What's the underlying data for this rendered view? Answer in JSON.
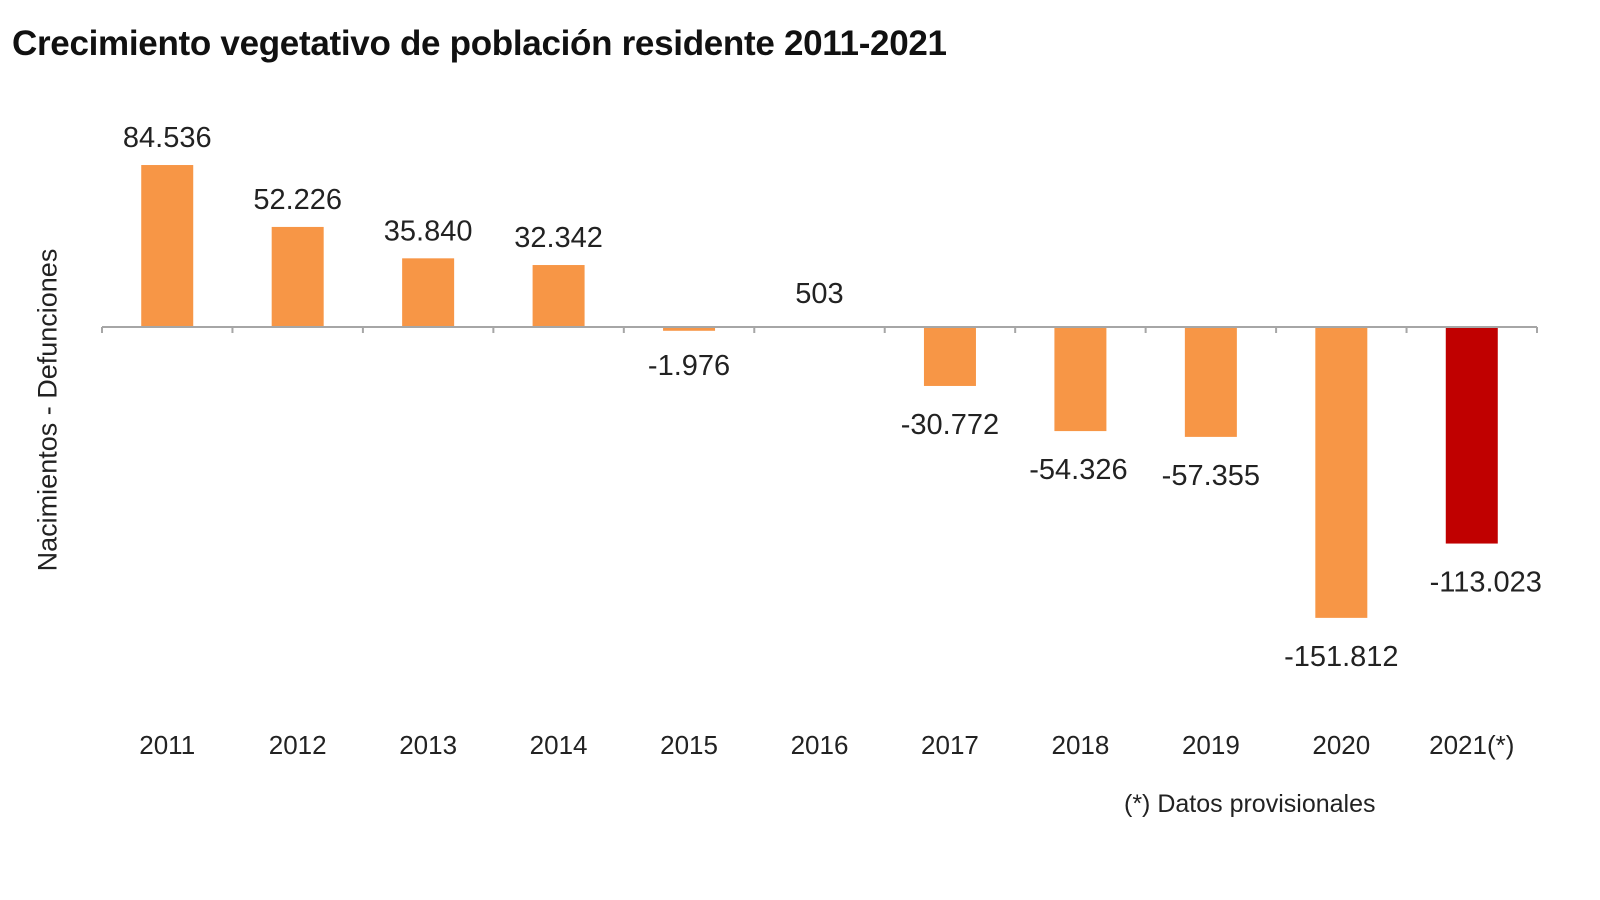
{
  "chart_data": {
    "type": "bar",
    "title": "Crecimiento vegetativo de población residente 2011-2021",
    "xlabel": "",
    "ylabel": "Nacimientos - Defunciones",
    "categories": [
      "2011",
      "2012",
      "2013",
      "2014",
      "2015",
      "2016",
      "2017",
      "2018",
      "2019",
      "2020",
      "2021(*)"
    ],
    "values": [
      84536,
      52226,
      35840,
      32342,
      -1976,
      503,
      -30772,
      -54326,
      -57355,
      -151812,
      -113023
    ],
    "value_labels": [
      "84.536",
      "52.226",
      "35.840",
      "32.342",
      "-1.976",
      "503",
      "-30.772",
      "-54.326",
      "-57.355",
      "-151.812",
      "-113.023"
    ],
    "provisional": [
      false,
      false,
      false,
      false,
      false,
      false,
      false,
      false,
      false,
      false,
      true
    ],
    "colors": {
      "bar": "#F79646",
      "provisional_bar": "#C00000",
      "axis": "#A6A6A6"
    },
    "ylim": [
      -160000,
      100000
    ],
    "grid": false,
    "legend": "none",
    "footnote": "(*)  Datos provisionales"
  }
}
